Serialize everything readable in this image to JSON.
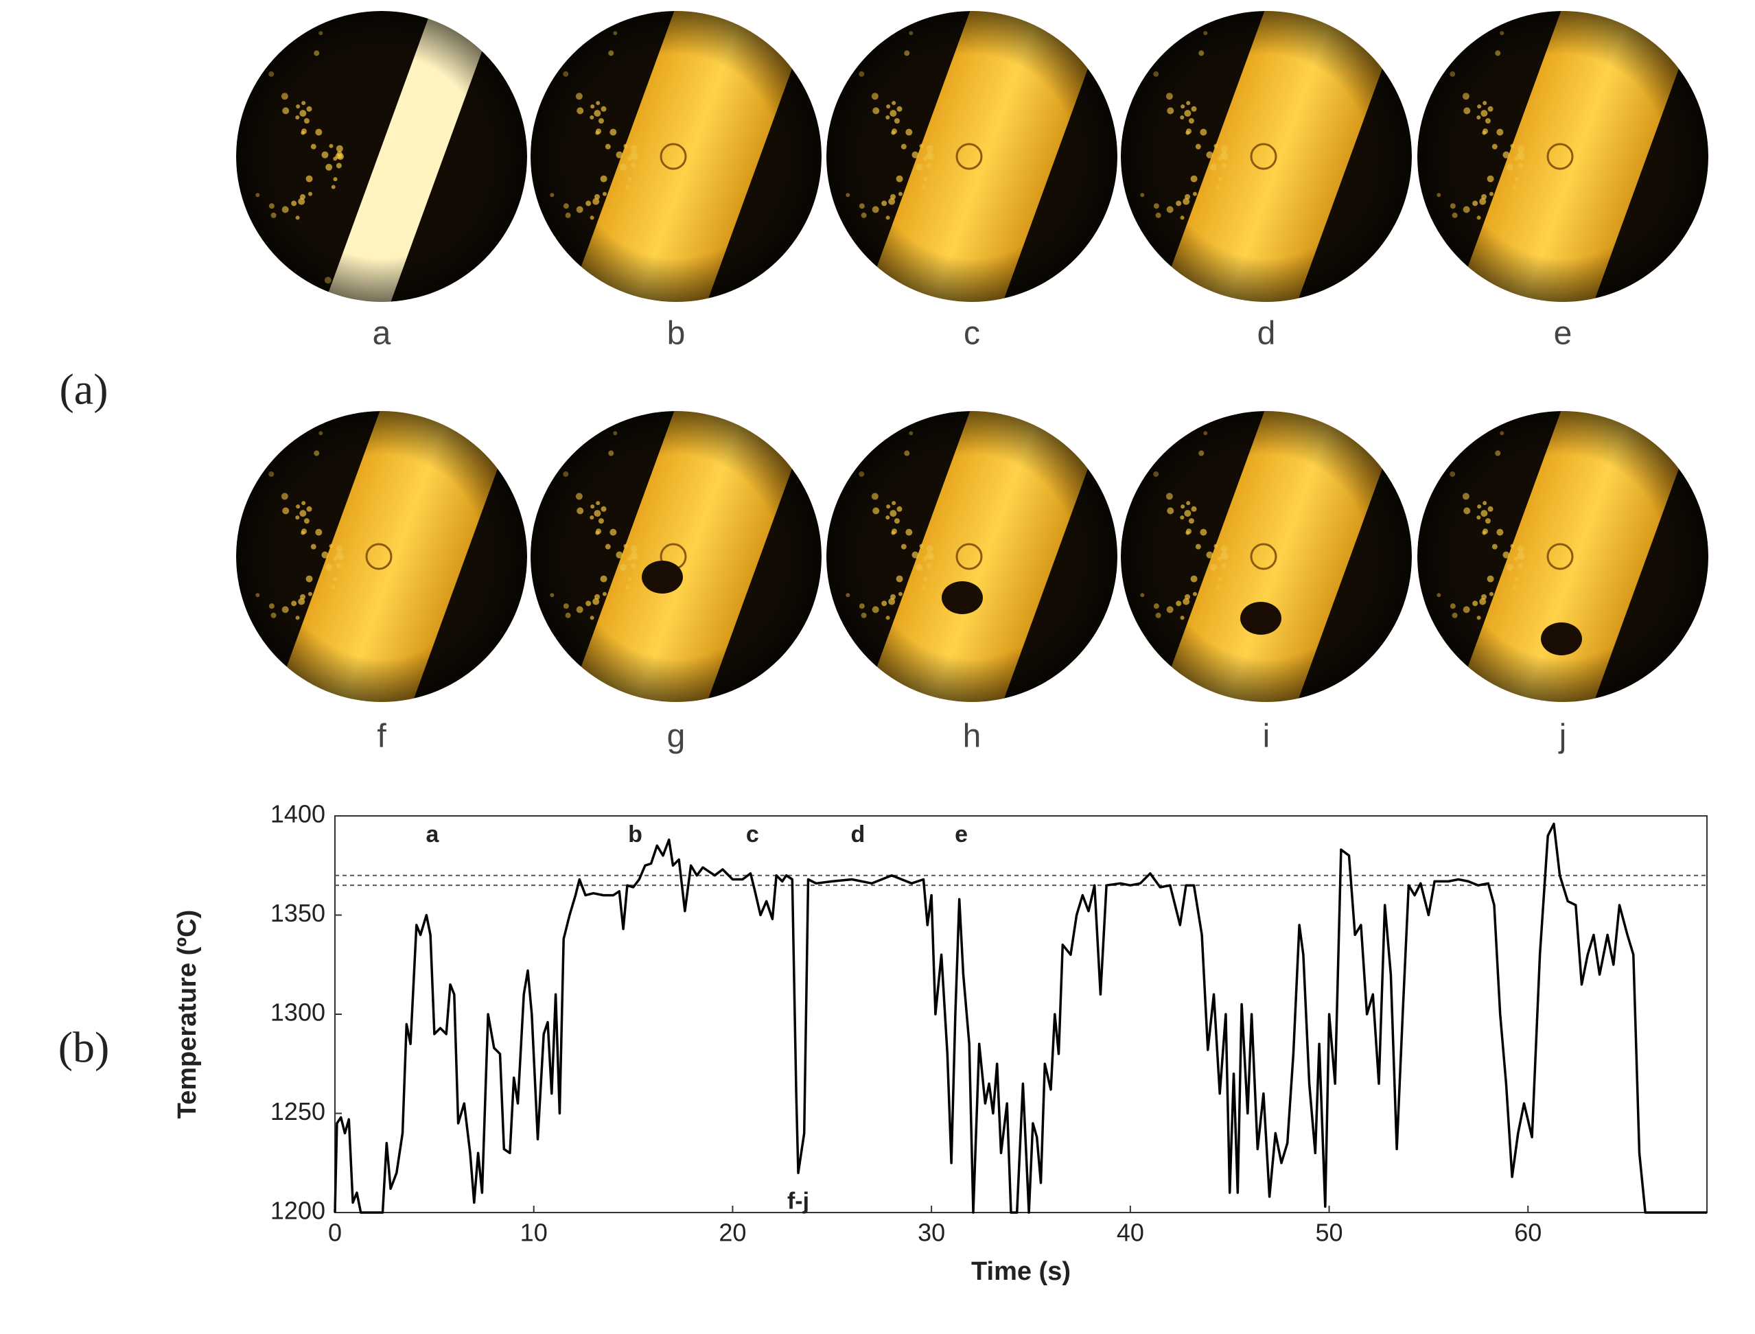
{
  "figure": {
    "panel_labels": [
      "(a)",
      "(b)"
    ],
    "image_labels": [
      "a",
      "b",
      "c",
      "d",
      "e",
      "f",
      "g",
      "h",
      "i",
      "j"
    ]
  },
  "chart_data": {
    "type": "line",
    "xlabel": "Time (s)",
    "ylabel": "Temperature (ºC)",
    "xlim": [
      0,
      69
    ],
    "ylim": [
      1200,
      1400
    ],
    "xticks": [
      0,
      10,
      20,
      30,
      40,
      50,
      60
    ],
    "yticks": [
      1200,
      1250,
      1300,
      1350,
      1400
    ],
    "hlines": [
      1370,
      1365
    ],
    "annotations": [
      {
        "text": "a",
        "x": 4.9,
        "y": 1390
      },
      {
        "text": "b",
        "x": 15.1,
        "y": 1390
      },
      {
        "text": "c",
        "x": 21,
        "y": 1390
      },
      {
        "text": "d",
        "x": 26.3,
        "y": 1390
      },
      {
        "text": "e",
        "x": 31.5,
        "y": 1390
      },
      {
        "text": "f-j",
        "x": 23.3,
        "y": 1205
      }
    ],
    "series": [
      {
        "color": "#000000",
        "x": [
          0,
          0.1,
          0.3,
          0.5,
          0.7,
          0.9,
          1.1,
          1.3,
          2.4,
          2.6,
          2.8,
          3.1,
          3.4,
          3.6,
          3.8,
          4.1,
          4.3,
          4.6,
          4.8,
          5.0,
          5.3,
          5.6,
          5.8,
          6.0,
          6.2,
          6.5,
          6.8,
          7.0,
          7.2,
          7.4,
          7.7,
          8.0,
          8.3,
          8.5,
          8.8,
          9.0,
          9.2,
          9.5,
          9.7,
          9.9,
          10.2,
          10.5,
          10.7,
          10.9,
          11.1,
          11.3,
          11.5,
          11.8,
          12.1,
          12.3,
          12.6,
          13,
          13.5,
          14,
          14.3,
          14.5,
          14.7,
          15,
          15.3,
          15.6,
          15.9,
          16.2,
          16.5,
          16.8,
          17.0,
          17.3,
          17.6,
          17.9,
          18.2,
          18.5,
          18.8,
          19.1,
          19.5,
          20,
          20.5,
          20.9,
          21.1,
          21.4,
          21.7,
          22,
          22.2,
          22.5,
          22.7,
          23.0,
          23.2,
          23.3,
          23.6,
          23.8,
          24.2,
          25,
          26,
          27,
          28,
          29,
          29.6,
          29.8,
          30.0,
          30.2,
          30.5,
          30.8,
          31.0,
          31.2,
          31.4,
          31.6,
          31.9,
          32.1,
          32.4,
          32.7,
          32.9,
          33.1,
          33.3,
          33.5,
          33.8,
          34.0,
          34.3,
          34.6,
          34.9,
          35.1,
          35.3,
          35.5,
          35.7,
          36.0,
          36.2,
          36.4,
          36.6,
          37.0,
          37.3,
          37.6,
          37.9,
          38.2,
          38.5,
          38.8,
          39.5,
          40,
          40.5,
          41,
          41.5,
          42,
          42.5,
          42.8,
          43.2,
          43.6,
          43.9,
          44.2,
          44.5,
          44.8,
          45.0,
          45.2,
          45.4,
          45.6,
          45.9,
          46.1,
          46.4,
          46.7,
          47.0,
          47.3,
          47.6,
          47.9,
          48.2,
          48.5,
          48.7,
          49.0,
          49.3,
          49.5,
          49.8,
          50.0,
          50.3,
          50.6,
          51.0,
          51.3,
          51.6,
          51.9,
          52.2,
          52.5,
          52.8,
          53.1,
          53.4,
          53.7,
          54.0,
          54.3,
          54.6,
          55.0,
          55.3,
          56,
          56.5,
          57,
          57.5,
          58,
          58.3,
          58.6,
          58.9,
          59.2,
          59.5,
          59.8,
          60.2,
          60.6,
          61,
          61.3,
          61.6,
          62,
          62.4,
          62.7,
          63,
          63.3,
          63.6,
          64,
          64.3,
          64.6,
          65,
          65.3,
          65.6,
          65.9,
          69
        ],
        "values": [
          1200,
          1245,
          1248,
          1240,
          1247,
          1205,
          1210,
          1200,
          1200,
          1235,
          1212,
          1220,
          1240,
          1295,
          1285,
          1345,
          1340,
          1350,
          1340,
          1290,
          1293,
          1290,
          1315,
          1310,
          1245,
          1255,
          1230,
          1205,
          1230,
          1210,
          1300,
          1283,
          1280,
          1232,
          1230,
          1268,
          1255,
          1310,
          1322,
          1300,
          1237,
          1290,
          1296,
          1260,
          1310,
          1250,
          1338,
          1350,
          1360,
          1368,
          1360,
          1361,
          1360,
          1360,
          1362,
          1343,
          1365,
          1364,
          1368,
          1375,
          1376,
          1385,
          1380,
          1388,
          1375,
          1378,
          1352,
          1375,
          1370,
          1374,
          1372,
          1370,
          1373,
          1368,
          1368,
          1371,
          1363,
          1350,
          1357,
          1348,
          1370,
          1367,
          1370,
          1368,
          1260,
          1220,
          1240,
          1368,
          1366,
          1367,
          1368,
          1366,
          1370,
          1366,
          1368,
          1345,
          1360,
          1300,
          1330,
          1280,
          1225,
          1300,
          1358,
          1320,
          1285,
          1200,
          1285,
          1255,
          1265,
          1250,
          1275,
          1230,
          1255,
          1200,
          1200,
          1265,
          1200,
          1245,
          1238,
          1215,
          1275,
          1262,
          1300,
          1280,
          1335,
          1330,
          1350,
          1360,
          1352,
          1365,
          1310,
          1365,
          1366,
          1365,
          1366,
          1371,
          1364,
          1365,
          1345,
          1365,
          1365,
          1340,
          1282,
          1310,
          1260,
          1300,
          1210,
          1270,
          1210,
          1305,
          1250,
          1300,
          1232,
          1260,
          1208,
          1240,
          1225,
          1235,
          1280,
          1345,
          1330,
          1265,
          1230,
          1285,
          1203,
          1300,
          1265,
          1383,
          1380,
          1340,
          1345,
          1300,
          1310,
          1265,
          1355,
          1320,
          1232,
          1300,
          1365,
          1360,
          1366,
          1350,
          1367,
          1367,
          1368,
          1367,
          1365,
          1366,
          1355,
          1300,
          1265,
          1218,
          1240,
          1255,
          1238,
          1330,
          1390,
          1396,
          1370,
          1357,
          1355,
          1315,
          1330,
          1340,
          1320,
          1340,
          1325,
          1355,
          1340,
          1330,
          1230,
          1200,
          1200
        ]
      }
    ]
  }
}
